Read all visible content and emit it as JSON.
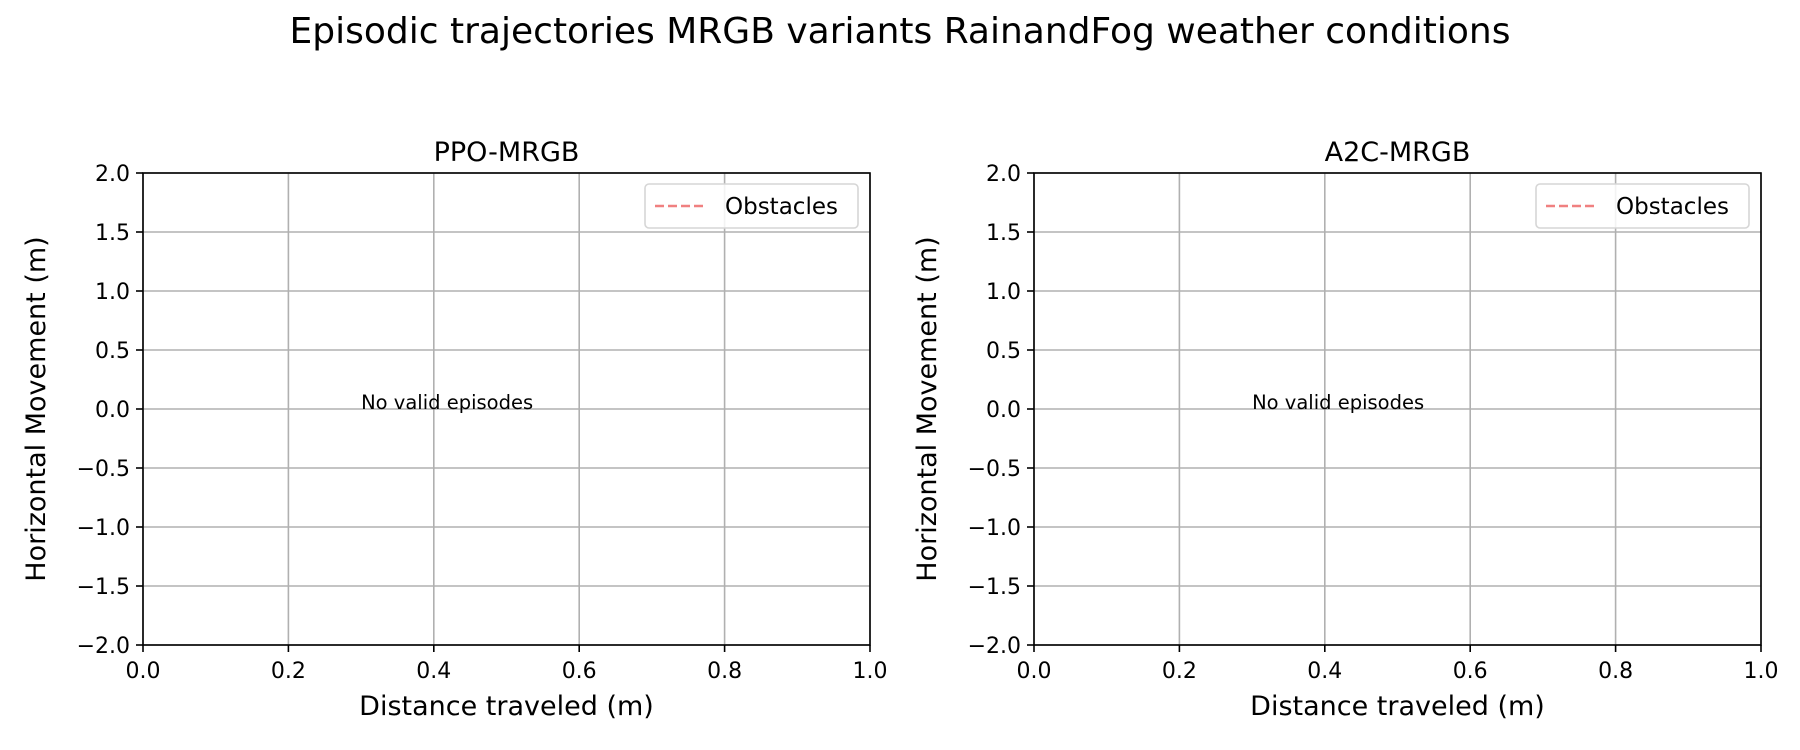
{
  "figure_title": "Episodic trajectories MRGB variants RainandFog weather conditions",
  "chart_data": [
    {
      "type": "line",
      "title": "PPO-MRGB",
      "xlabel": "Distance traveled (m)",
      "ylabel": "Horizontal Movement (m)",
      "xlim": [
        0.0,
        1.0
      ],
      "ylim": [
        -2.0,
        2.0
      ],
      "xticks": [
        0.0,
        0.2,
        0.4,
        0.6,
        0.8,
        1.0
      ],
      "xtick_labels": [
        "0.0",
        "0.2",
        "0.4",
        "0.6",
        "0.8",
        "1.0"
      ],
      "yticks": [
        2.0,
        1.5,
        1.0,
        0.5,
        0.0,
        -0.5,
        -1.0,
        -1.5,
        -2.0
      ],
      "ytick_labels": [
        "2.0",
        "1.5",
        "1.0",
        "0.5",
        "0.0",
        "−0.5",
        "−1.0",
        "−1.5",
        "−2.0"
      ],
      "grid": true,
      "legend": {
        "placement": "upper-right",
        "entries": [
          {
            "label": "Obstacles",
            "color": "#f08080",
            "style": "dashed"
          }
        ]
      },
      "annotation": {
        "text": "No valid episodes",
        "x": 0.3,
        "y": 0.0
      },
      "series": []
    },
    {
      "type": "line",
      "title": "A2C-MRGB",
      "xlabel": "Distance traveled (m)",
      "ylabel": "Horizontal Movement (m)",
      "xlim": [
        0.0,
        1.0
      ],
      "ylim": [
        -2.0,
        2.0
      ],
      "xticks": [
        0.0,
        0.2,
        0.4,
        0.6,
        0.8,
        1.0
      ],
      "xtick_labels": [
        "0.0",
        "0.2",
        "0.4",
        "0.6",
        "0.8",
        "1.0"
      ],
      "yticks": [
        2.0,
        1.5,
        1.0,
        0.5,
        0.0,
        -0.5,
        -1.0,
        -1.5,
        -2.0
      ],
      "ytick_labels": [
        "2.0",
        "1.5",
        "1.0",
        "0.5",
        "0.0",
        "−0.5",
        "−1.0",
        "−1.5",
        "−2.0"
      ],
      "grid": true,
      "legend": {
        "placement": "upper-right",
        "entries": [
          {
            "label": "Obstacles",
            "color": "#f08080",
            "style": "dashed"
          }
        ]
      },
      "annotation": {
        "text": "No valid episodes",
        "x": 0.3,
        "y": 0.0
      },
      "series": []
    }
  ]
}
